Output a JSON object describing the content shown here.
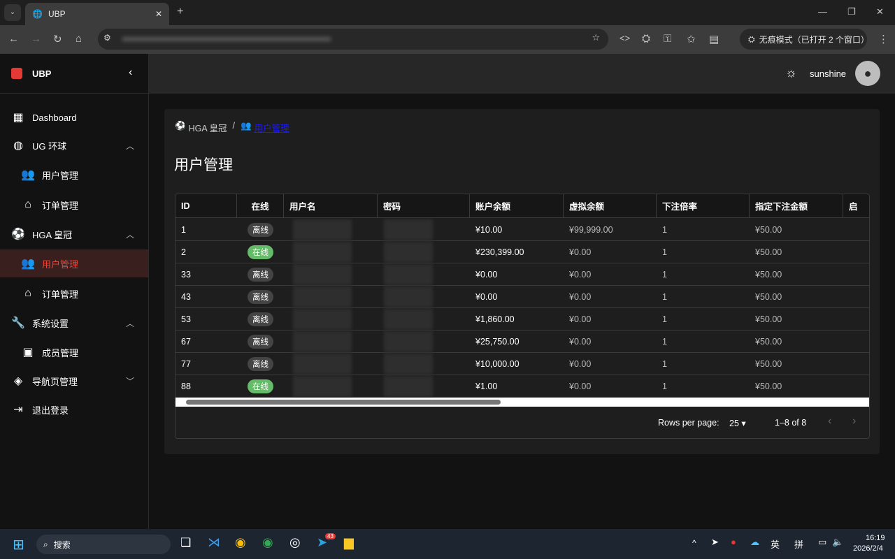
{
  "browser": {
    "tab_title": "UBP",
    "incognito_label": "无痕模式（已打开 2 个窗口）"
  },
  "app": {
    "logo": "UBP",
    "username": "sunshine"
  },
  "sidebar": {
    "items": [
      {
        "label": "Dashboard",
        "icon": "dashboard-icon",
        "level": 0
      },
      {
        "label": "UG 环球",
        "icon": "globe-icon",
        "level": 0,
        "chevron": "up"
      },
      {
        "label": "用户管理",
        "icon": "people-icon",
        "level": 1
      },
      {
        "label": "订单管理",
        "icon": "store-icon",
        "level": 1
      },
      {
        "label": "HGA 皇冠",
        "icon": "soccer-ball-icon",
        "level": 0,
        "chevron": "up"
      },
      {
        "label": "用户管理",
        "icon": "people-icon",
        "level": 1,
        "active": true
      },
      {
        "label": "订单管理",
        "icon": "store-icon",
        "level": 1
      },
      {
        "label": "系统设置",
        "icon": "wrench-icon",
        "level": 0,
        "chevron": "up"
      },
      {
        "label": "成员管理",
        "icon": "badge-icon",
        "level": 1
      },
      {
        "label": "导航页管理",
        "icon": "compass-icon",
        "level": 0,
        "chevron": "down"
      },
      {
        "label": "退出登录",
        "icon": "logout-icon",
        "level": 0
      }
    ]
  },
  "breadcrumb": {
    "parent": "HGA 皇冠",
    "separator": "/",
    "current": "用户管理"
  },
  "page_title": "用户管理",
  "table": {
    "columns": [
      "ID",
      "在线",
      "用户名",
      "密码",
      "账户余额",
      "虚拟余额",
      "下注倍率",
      "指定下注金额",
      "启"
    ],
    "rows": [
      {
        "id": "1",
        "online": "离线",
        "status": "off",
        "balance": "¥10.00",
        "virtual": "¥99,999.00",
        "rate": "1",
        "bet": "¥50.00"
      },
      {
        "id": "2",
        "online": "在线",
        "status": "on",
        "balance": "¥230,399.00",
        "virtual": "¥0.00",
        "rate": "1",
        "bet": "¥50.00"
      },
      {
        "id": "33",
        "online": "离线",
        "status": "off",
        "balance": "¥0.00",
        "virtual": "¥0.00",
        "rate": "1",
        "bet": "¥50.00"
      },
      {
        "id": "43",
        "online": "离线",
        "status": "off",
        "balance": "¥0.00",
        "virtual": "¥0.00",
        "rate": "1",
        "bet": "¥50.00"
      },
      {
        "id": "53",
        "online": "离线",
        "status": "off",
        "balance": "¥1,860.00",
        "virtual": "¥0.00",
        "rate": "1",
        "bet": "¥50.00"
      },
      {
        "id": "67",
        "online": "离线",
        "status": "off",
        "balance": "¥25,750.00",
        "virtual": "¥0.00",
        "rate": "1",
        "bet": "¥50.00"
      },
      {
        "id": "77",
        "online": "离线",
        "status": "off",
        "balance": "¥10,000.00",
        "virtual": "¥0.00",
        "rate": "1",
        "bet": "¥50.00"
      },
      {
        "id": "88",
        "online": "在线",
        "status": "on",
        "balance": "¥1.00",
        "virtual": "¥0.00",
        "rate": "1",
        "bet": "¥50.00"
      }
    ]
  },
  "pagination": {
    "rows_per_page_label": "Rows per page:",
    "rows_per_page": "25",
    "range": "1–8 of 8"
  },
  "taskbar": {
    "search": "搜索",
    "telegram_badge": "43",
    "ime1": "英",
    "ime2": "拼",
    "time": "16:19",
    "date": "2026/2/4"
  },
  "colors": {
    "accent": "#f44336",
    "online": "#66bb6a",
    "offline": "#444444"
  }
}
